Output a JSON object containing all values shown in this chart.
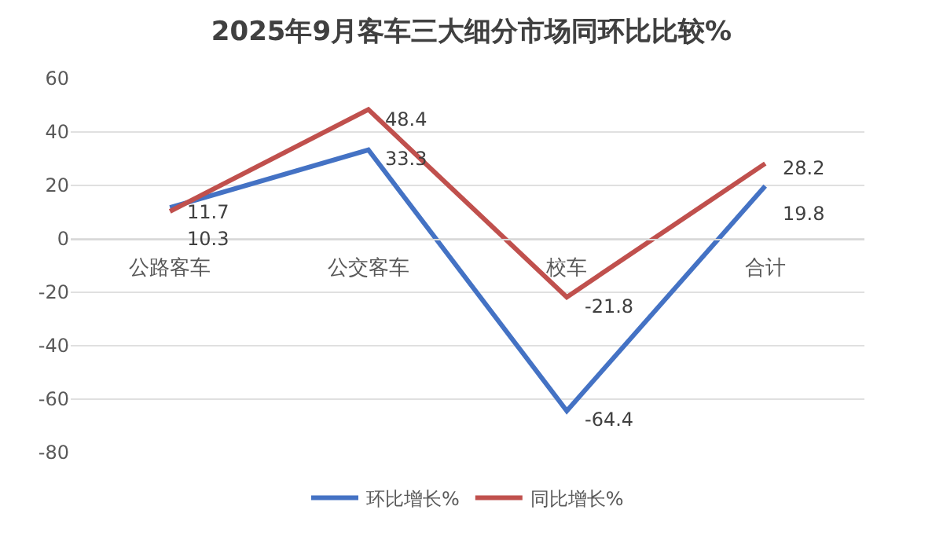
{
  "chart_data": {
    "type": "line",
    "title": "2025年9月客车三大细分市场同环比比较%",
    "categories": [
      "公路客车",
      "公交客车",
      "校车",
      "合计"
    ],
    "series": [
      {
        "name": "环比增长%",
        "color": "#4472c4",
        "values": [
          11.7,
          33.3,
          -64.4,
          19.8
        ]
      },
      {
        "name": "同比增长%",
        "color": "#c0504d",
        "values": [
          10.3,
          48.4,
          -21.8,
          28.2
        ]
      }
    ],
    "ylim": [
      -80,
      60
    ],
    "yticks": [
      -80,
      -60,
      -40,
      -20,
      0,
      20,
      40,
      60
    ],
    "grid": "y",
    "legend": "bottom",
    "data_labels": true,
    "marker": "none",
    "line_style": "solid"
  }
}
